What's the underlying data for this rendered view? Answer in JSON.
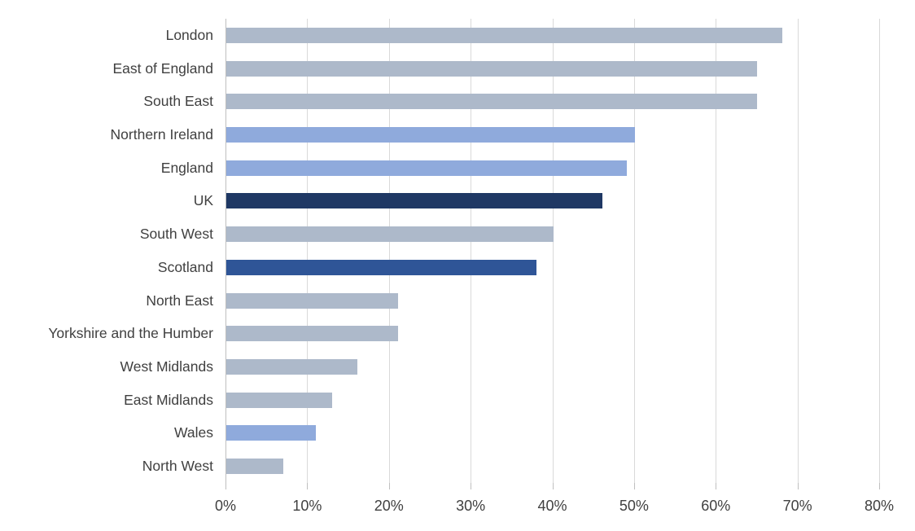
{
  "chart_data": {
    "type": "bar",
    "orientation": "horizontal",
    "title": "",
    "xlabel": "",
    "ylabel": "",
    "grid": true,
    "legend": false,
    "xlim": [
      0,
      80
    ],
    "x_ticks": [
      "0%",
      "10%",
      "20%",
      "30%",
      "40%",
      "50%",
      "60%",
      "70%",
      "80%"
    ],
    "categories": [
      "London",
      "East of England",
      "South East",
      "Northern Ireland",
      "England",
      "UK",
      "South West",
      "Scotland",
      "North East",
      "Yorkshire and the Humber",
      "West Midlands",
      "East Midlands",
      "Wales",
      "North West"
    ],
    "values": [
      68,
      65,
      65,
      50,
      49,
      46,
      40,
      38,
      21,
      21,
      16,
      13,
      11,
      7
    ],
    "bars": [
      {
        "label": "London",
        "value": 68,
        "color_role": "default"
      },
      {
        "label": "East of England",
        "value": 65,
        "color_role": "default"
      },
      {
        "label": "South East",
        "value": 65,
        "color_role": "default"
      },
      {
        "label": "Northern Ireland",
        "value": 50,
        "color_role": "accent"
      },
      {
        "label": "England",
        "value": 49,
        "color_role": "accent"
      },
      {
        "label": "UK",
        "value": 46,
        "color_role": "dark"
      },
      {
        "label": "South West",
        "value": 40,
        "color_role": "default"
      },
      {
        "label": "Scotland",
        "value": 38,
        "color_role": "medium"
      },
      {
        "label": "North East",
        "value": 21,
        "color_role": "default"
      },
      {
        "label": "Yorkshire and the Humber",
        "value": 21,
        "color_role": "default"
      },
      {
        "label": "West Midlands",
        "value": 16,
        "color_role": "default"
      },
      {
        "label": "East Midlands",
        "value": 13,
        "color_role": "default"
      },
      {
        "label": "Wales",
        "value": 11,
        "color_role": "accent"
      },
      {
        "label": "North West",
        "value": 7,
        "color_role": "default"
      }
    ],
    "colors": {
      "default": "#ADB9CA",
      "accent": "#8FAADC",
      "medium": "#2F5597",
      "dark": "#1F3864",
      "gridline": "#D9D9D9",
      "axis_line": "#BFBFBF",
      "label_text": "#404040"
    }
  }
}
